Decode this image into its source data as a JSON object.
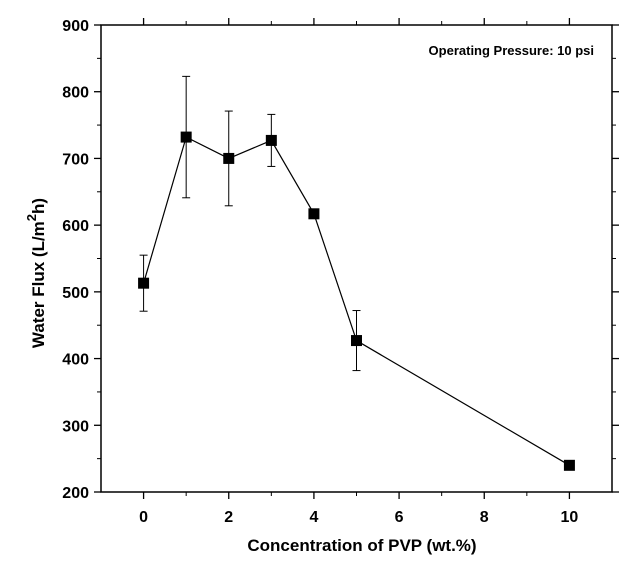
{
  "chart_data": {
    "type": "scatter",
    "title": "",
    "annotation": "Operating Pressure: 10 psi",
    "xlabel": "Concentration of PVP (wt.%)",
    "ylabel_main": "Water Flux (L/m",
    "ylabel_sup": "2",
    "ylabel_end": "h)",
    "xlim": [
      -1,
      11
    ],
    "ylim": [
      200,
      900
    ],
    "xticks": [
      0,
      2,
      4,
      6,
      8,
      10
    ],
    "yticks": [
      200,
      300,
      400,
      500,
      600,
      700,
      800,
      900
    ],
    "grid": false,
    "series": [
      {
        "x": [
          0,
          1,
          2,
          3,
          4,
          5,
          10
        ],
        "y": [
          513,
          732,
          700,
          727,
          617,
          427,
          240
        ],
        "error": [
          42,
          91,
          71,
          39,
          null,
          45,
          null
        ],
        "marker": "square",
        "color": "#000000"
      }
    ]
  }
}
